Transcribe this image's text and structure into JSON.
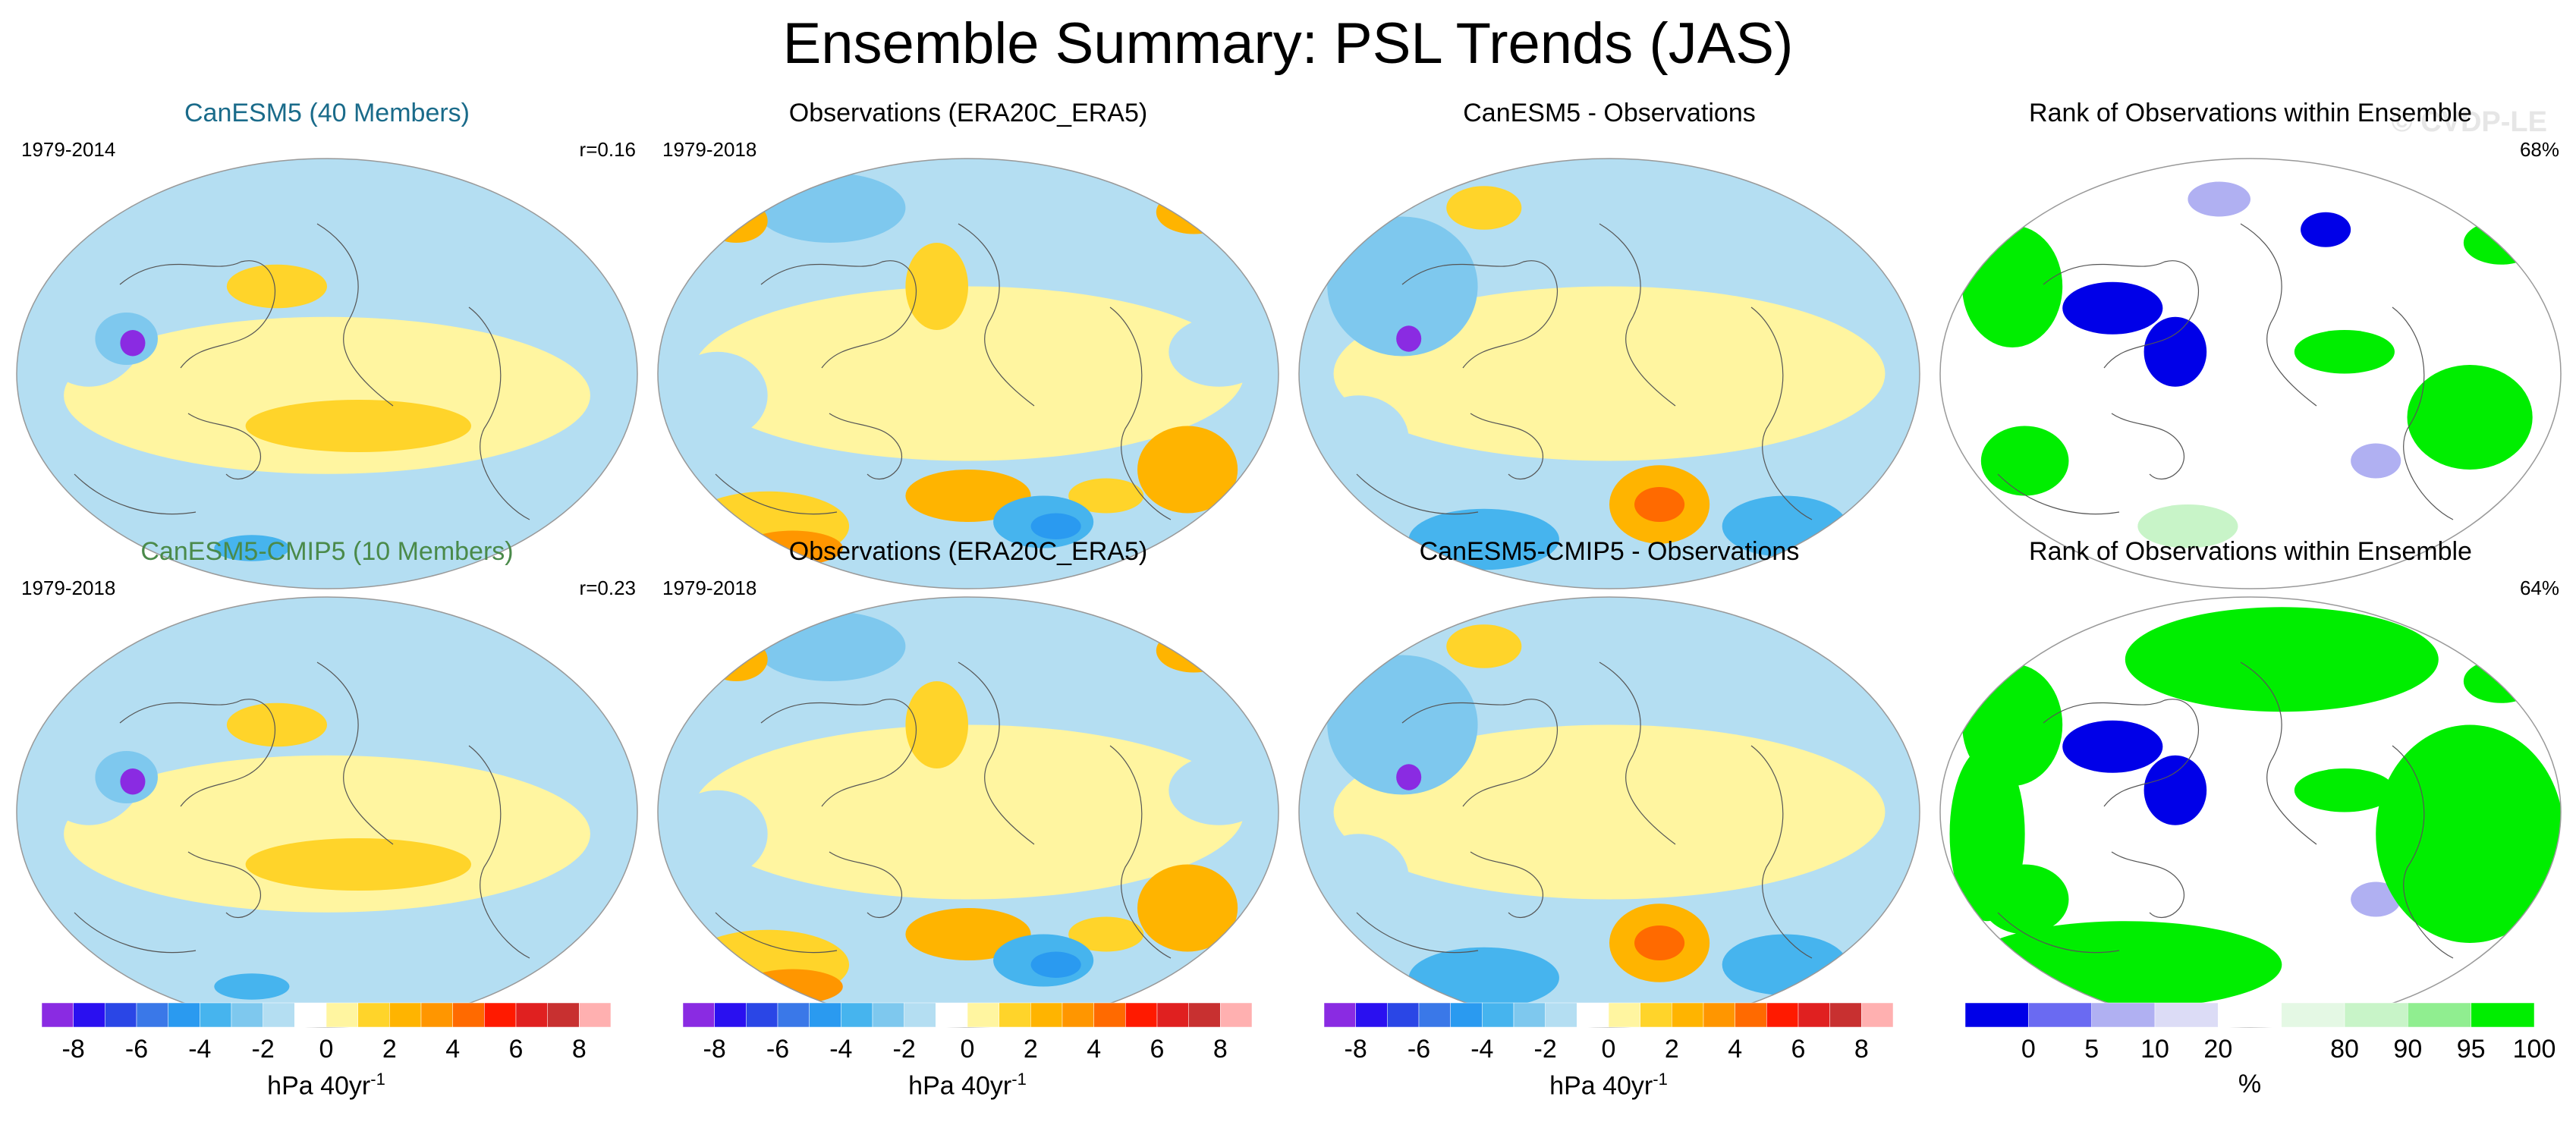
{
  "title": "Ensemble Summary: PSL Trends (JAS)",
  "watermark": "© CVDP-LE",
  "colors": {
    "neg8": "#8a2be2",
    "neg7": "#2a10f0",
    "neg6": "#2a46e6",
    "neg5": "#3a78e8",
    "neg4": "#2a9af0",
    "neg3": "#46b4ee",
    "neg2": "#7ec8ee",
    "neg1": "#b4def2",
    "pos1": "#fff5a0",
    "pos2": "#ffd42a",
    "pos3": "#ffb400",
    "pos4": "#ff9600",
    "pos5": "#ff6a00",
    "pos6": "#ff1a00",
    "pos7": "#e02020",
    "pos8": "#ffb0b0",
    "rank_blue": "#0000e8",
    "rank_blue2": "#6a6af2",
    "rank_blue3": "#b0b0f2",
    "rank_blue4": "#dcdcf6",
    "rank_green": "#00ee00",
    "rank_green2": "#90ee90",
    "rank_green3": "#c8f4c8",
    "rank_green4": "#e4f8e4"
  },
  "chart_data": [
    {
      "type": "heatmap",
      "title": "CanESM5 (40 Members)",
      "title_color": "#1a6b8a",
      "period": "1979-2014",
      "stat": "r=0.16",
      "field": "model",
      "units": "hPa 40yr-1"
    },
    {
      "type": "heatmap",
      "title": "Observations (ERA20C_ERA5)",
      "title_color": "#000000",
      "period": "1979-2018",
      "stat": "",
      "field": "obs",
      "units": "hPa 40yr-1"
    },
    {
      "type": "heatmap",
      "title": "CanESM5 - Observations",
      "title_color": "#000000",
      "period": "",
      "stat": "",
      "field": "diff",
      "units": "hPa 40yr-1"
    },
    {
      "type": "heatmap",
      "title": "Rank of Observations within Ensemble",
      "title_color": "#000000",
      "period": "",
      "stat": "68%",
      "field": "rank",
      "units": "%"
    },
    {
      "type": "heatmap",
      "title": "CanESM5-CMIP5 (10 Members)",
      "title_color": "#4a8a4a",
      "period": "1979-2018",
      "stat": "r=0.23",
      "field": "model",
      "units": "hPa 40yr-1"
    },
    {
      "type": "heatmap",
      "title": "Observations (ERA20C_ERA5)",
      "title_color": "#000000",
      "period": "1979-2018",
      "stat": "",
      "field": "obs",
      "units": "hPa 40yr-1"
    },
    {
      "type": "heatmap",
      "title": "CanESM5-CMIP5 - Observations",
      "title_color": "#000000",
      "period": "",
      "stat": "",
      "field": "diff",
      "units": "hPa 40yr-1"
    },
    {
      "type": "heatmap",
      "title": "Rank of Observations within Ensemble",
      "title_color": "#000000",
      "period": "",
      "stat": "64%",
      "field": "rank",
      "units": "%"
    }
  ],
  "colorbars": {
    "psl": {
      "units": "hPa 40yr",
      "units_sup": "-1",
      "ticks": [
        "-8",
        "-6",
        "-4",
        "-2",
        "0",
        "2",
        "4",
        "6",
        "8"
      ],
      "tick_values": [
        -8,
        -6,
        -4,
        -2,
        0,
        2,
        4,
        6,
        8
      ],
      "range": [
        -9,
        9
      ],
      "colors": [
        "#8a2be2",
        "#2a10f0",
        "#2a46e6",
        "#3a78e8",
        "#2a9af0",
        "#46b4ee",
        "#7ec8ee",
        "#b4def2",
        "#ffffff",
        "#fff5a0",
        "#ffd42a",
        "#ffb400",
        "#ff9600",
        "#ff6a00",
        "#ff1a00",
        "#e02020",
        "#c83030",
        "#ffb0b0"
      ]
    },
    "rank": {
      "units": "%",
      "ticks": [
        "0",
        "5",
        "10",
        "20",
        "80",
        "90",
        "95",
        "100"
      ],
      "tick_index": [
        1,
        2,
        3,
        4,
        6,
        7,
        8,
        9
      ],
      "colors": [
        "#0000e8",
        "#6a6af2",
        "#b0b0f2",
        "#dcdcf6",
        "#ffffff",
        "#e4f8e4",
        "#c8f4c8",
        "#90ee90",
        "#00ee00"
      ]
    }
  }
}
